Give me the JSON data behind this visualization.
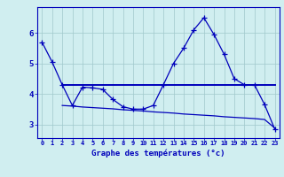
{
  "title": "Graphe des températures (°c)",
  "background_color": "#d0eef0",
  "line_color": "#0000bb",
  "grid_color": "#a0c8cc",
  "x_ticks": [
    0,
    1,
    2,
    3,
    4,
    5,
    6,
    7,
    8,
    9,
    10,
    11,
    12,
    13,
    14,
    15,
    16,
    17,
    18,
    19,
    20,
    21,
    22,
    23
  ],
  "x_tick_labels": [
    "0",
    "1",
    "2",
    "3",
    "4",
    "5",
    "6",
    "7",
    "8",
    "9",
    "10",
    "11",
    "12",
    "13",
    "14",
    "15",
    "16",
    "17",
    "18",
    "19",
    "20",
    "21",
    "22",
    "23"
  ],
  "y_ticks": [
    3,
    4,
    5,
    6
  ],
  "ylim": [
    2.55,
    6.85
  ],
  "xlim": [
    -0.5,
    23.5
  ],
  "line1_x": [
    0,
    1,
    2,
    3,
    4,
    5,
    6,
    7,
    8,
    9,
    10,
    11,
    12,
    13,
    14,
    15,
    16,
    17,
    18,
    19,
    20,
    21,
    22,
    23
  ],
  "line1_y": [
    5.7,
    5.05,
    4.3,
    3.62,
    4.22,
    4.2,
    4.15,
    3.82,
    3.58,
    3.5,
    3.5,
    3.62,
    4.3,
    5.0,
    5.5,
    6.1,
    6.5,
    5.95,
    5.3,
    4.5,
    4.3,
    4.3,
    3.65,
    2.85
  ],
  "line2_x": [
    2,
    3,
    4,
    5,
    6,
    7,
    8,
    9,
    10,
    11,
    12,
    13,
    14,
    15,
    16,
    17,
    18,
    19,
    20,
    21,
    22,
    23
  ],
  "line2_y": [
    4.3,
    4.3,
    4.3,
    4.3,
    4.3,
    4.3,
    4.3,
    4.3,
    4.3,
    4.3,
    4.3,
    4.3,
    4.3,
    4.3,
    4.3,
    4.3,
    4.3,
    4.3,
    4.3,
    4.3,
    4.3,
    4.3
  ],
  "line3_x": [
    2,
    3,
    4,
    5,
    6,
    7,
    8,
    9,
    10,
    11,
    12,
    13,
    14,
    15,
    16,
    17,
    18,
    19,
    20,
    21,
    22,
    23
  ],
  "line3_y": [
    3.62,
    3.6,
    3.57,
    3.55,
    3.53,
    3.51,
    3.48,
    3.46,
    3.44,
    3.41,
    3.39,
    3.37,
    3.34,
    3.32,
    3.3,
    3.28,
    3.25,
    3.23,
    3.21,
    3.19,
    3.16,
    2.88
  ]
}
